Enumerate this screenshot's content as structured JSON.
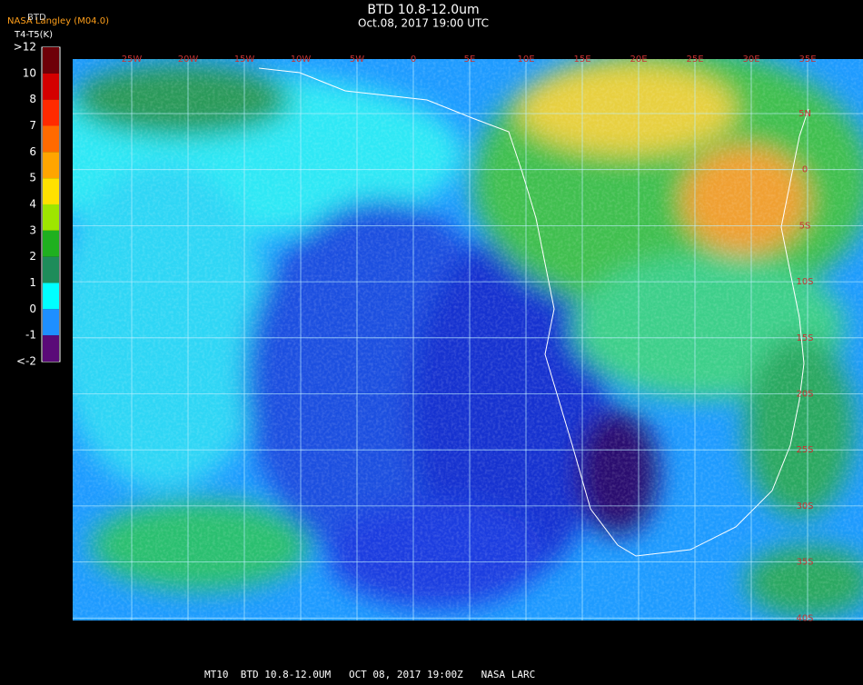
{
  "header": {
    "source": "NASA Langley (M04.0)",
    "product": "BTD",
    "units": "T4-T5(K)",
    "title": "BTD 10.8-12.0um",
    "subtitle": "Oct.08, 2017 19:00 UTC"
  },
  "colorbar": {
    "labels": [
      ">12",
      "10",
      "8",
      "7",
      "6",
      "5",
      "4",
      "3",
      "2",
      "1",
      "0",
      "-1",
      "<-2"
    ],
    "colors": [
      "#6e0008",
      "#d40000",
      "#ff2a00",
      "#ff6a00",
      "#ffa500",
      "#ffe100",
      "#9ee600",
      "#1fb01f",
      "#1e8c5a",
      "#00ffff",
      "#1e8fff",
      "#0022dd",
      "#5a0a78"
    ]
  },
  "map": {
    "longitudes": [
      "25W",
      "20W",
      "15W",
      "10W",
      "5W",
      "0",
      "5E",
      "10E",
      "15E",
      "20E",
      "25E",
      "30E",
      "35E"
    ],
    "latitudes": [
      "5N",
      "0",
      "5S",
      "10S",
      "15S",
      "20S",
      "25S",
      "30S",
      "35S",
      "40S"
    ]
  },
  "footer": {
    "caption": "MT10  BTD 10.8-12.0UM   OCT 08, 2017 19:00Z   NASA LARC"
  }
}
